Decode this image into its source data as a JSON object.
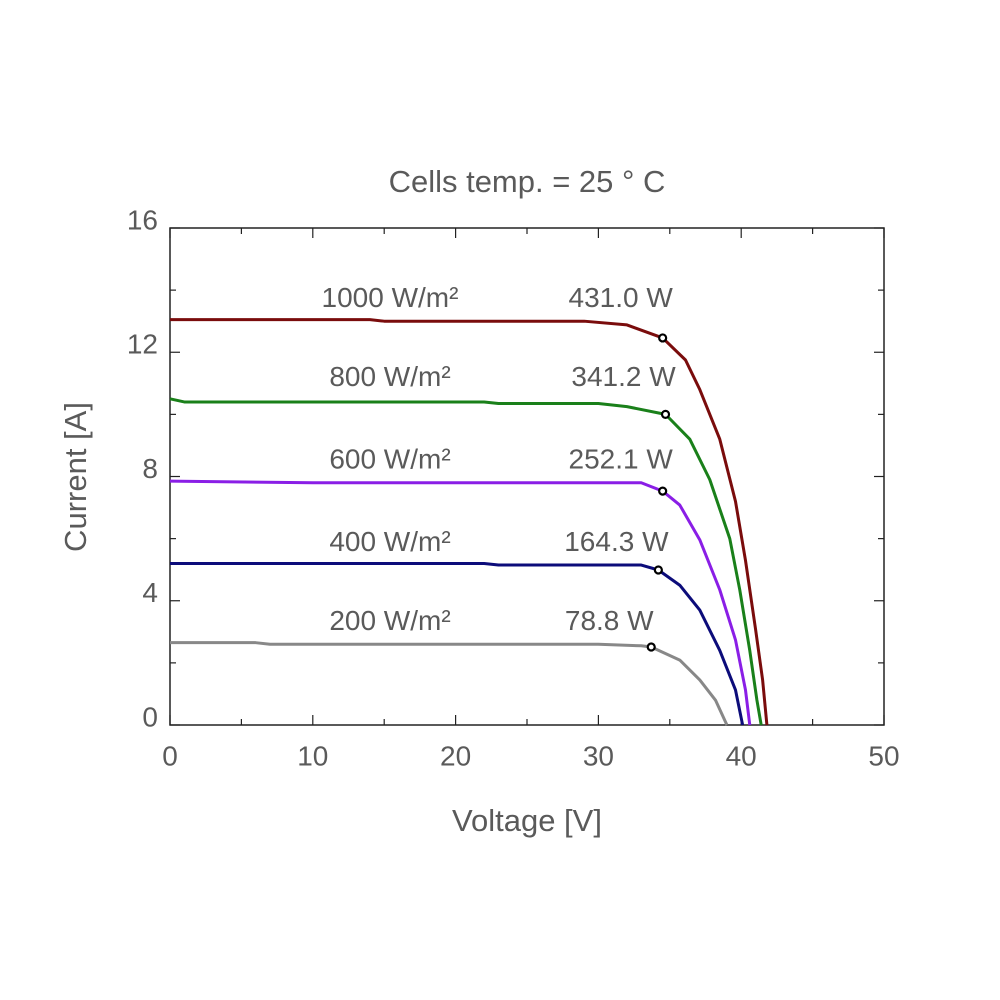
{
  "chart_data": {
    "type": "line",
    "title": "Cells temp. = 25 ° C",
    "xlabel": "Voltage [V]",
    "ylabel": "Current [A]",
    "xlim": [
      0,
      50
    ],
    "ylim": [
      0,
      16
    ],
    "xticks": [
      0,
      10,
      20,
      30,
      40,
      50
    ],
    "yticks": [
      0,
      4,
      8,
      12,
      16
    ],
    "xminor": [
      5,
      15,
      25,
      35,
      45
    ],
    "yminor": [
      2,
      6,
      10,
      14
    ],
    "series": [
      {
        "name": "1000 W/m²",
        "color": "#7a0c0c",
        "x": [
          0,
          14,
          15,
          29,
          32,
          34.5,
          36.1,
          37.1,
          38.5,
          39.6,
          40.3,
          41.0,
          41.5,
          41.8
        ],
        "values": [
          13.05,
          13.05,
          13.0,
          13.0,
          12.88,
          12.46,
          11.75,
          10.8,
          9.2,
          7.2,
          5.3,
          3.1,
          1.45,
          0
        ],
        "mpp_x": 34.5,
        "mpp_y": 12.46,
        "mpp_label": "431.0 W"
      },
      {
        "name": "800 W/m²",
        "color": "#1a801a",
        "x": [
          0,
          1,
          22,
          23,
          30,
          32,
          34.7,
          36.4,
          37.8,
          39.2,
          39.9,
          40.6,
          41.1,
          41.4
        ],
        "values": [
          10.5,
          10.4,
          10.4,
          10.35,
          10.35,
          10.25,
          10.0,
          9.2,
          7.9,
          6.0,
          4.35,
          2.4,
          0.8,
          0
        ],
        "mpp_x": 34.7,
        "mpp_y": 10.0,
        "mpp_label": "341.2 W"
      },
      {
        "name": "600 W/m²",
        "color": "#8a1ee6",
        "x": [
          0,
          10,
          33,
          34.5,
          35.7,
          37.1,
          38.5,
          39.6,
          40.3,
          40.6
        ],
        "values": [
          7.85,
          7.8,
          7.8,
          7.53,
          7.08,
          5.96,
          4.35,
          2.74,
          1.13,
          0
        ],
        "mpp_x": 34.5,
        "mpp_y": 7.53,
        "mpp_label": "252.1 W"
      },
      {
        "name": "400 W/m²",
        "color": "#0c0c7a",
        "x": [
          0,
          22,
          23,
          33,
          34.2,
          35.7,
          37.1,
          38.5,
          39.6,
          40.1
        ],
        "values": [
          5.2,
          5.2,
          5.15,
          5.15,
          4.99,
          4.5,
          3.7,
          2.4,
          1.13,
          0
        ],
        "mpp_x": 34.2,
        "mpp_y": 4.99,
        "mpp_label": "164.3 W"
      },
      {
        "name": "200 W/m²",
        "color": "#888888",
        "x": [
          0,
          6,
          7,
          30,
          33,
          33.7,
          35.7,
          37.1,
          38.2,
          39.0
        ],
        "values": [
          2.65,
          2.65,
          2.6,
          2.6,
          2.55,
          2.51,
          2.09,
          1.45,
          0.8,
          0
        ],
        "mpp_x": 33.7,
        "mpp_y": 2.51,
        "mpp_label": "78.8 W"
      }
    ]
  }
}
